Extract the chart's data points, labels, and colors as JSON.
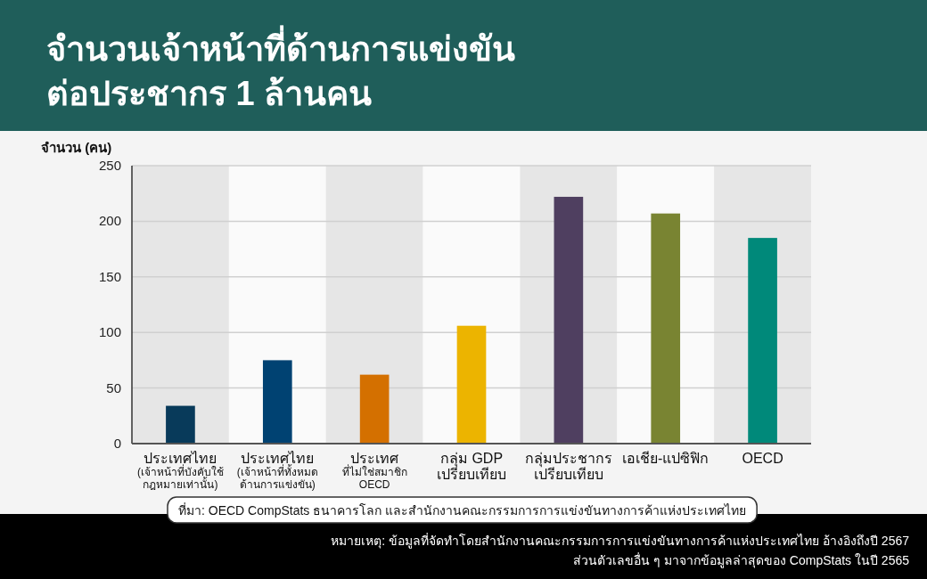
{
  "chart_data": {
    "type": "bar",
    "title": "จำนวนเจ้าหน้าที่ด้านการแข่งขัน\nต่อประชากร 1 ล้านคน",
    "ylabel": "จำนวน (คน)",
    "categories": [
      "ประเทศไทย\n(เจ้าหน้าที่บังคับใช้\nกฎหมายเท่านั้น)",
      "ประเทศไทย\n(เจ้าหน้าที่ทั้งหมด\nด้านการแข่งขัน)",
      "ประเทศ\nที่ไม่ใช่สมาชิก\nOECD",
      "กลุ่ม GDP\nเปรียบเทียบ",
      "กลุ่มประชากร\nเปรียบเทียบ",
      "เอเชีย-แปซิฟิก",
      "OECD"
    ],
    "values": [
      34,
      75,
      62,
      106,
      222,
      207,
      185
    ],
    "colors": [
      "#083a5a",
      "#004272",
      "#d47000",
      "#ecb400",
      "#4f3f60",
      "#798432",
      "#00897a"
    ],
    "ylim": [
      0,
      250
    ],
    "yticks": [
      0,
      50,
      100,
      150,
      200,
      250
    ],
    "grid": "y",
    "annotations": [
      "ที่มา: OECD CompStats ธนาคารโลก และสำนักงานคณะกรรมการการแข่งขันทางการค้าแห่งประเทศไทย",
      "หมายเหตุ: ข้อมูลที่จัดทำโดยสำนักงานคณะกรรมการการแข่งขันทางการค้าแห่งประเทศไทย อ้างอิงถึงปี 2567\nส่วนตัวเลขอื่น ๆ มาจากข้อมูลล่าสุดของ CompStats ในปี 2565"
    ]
  }
}
